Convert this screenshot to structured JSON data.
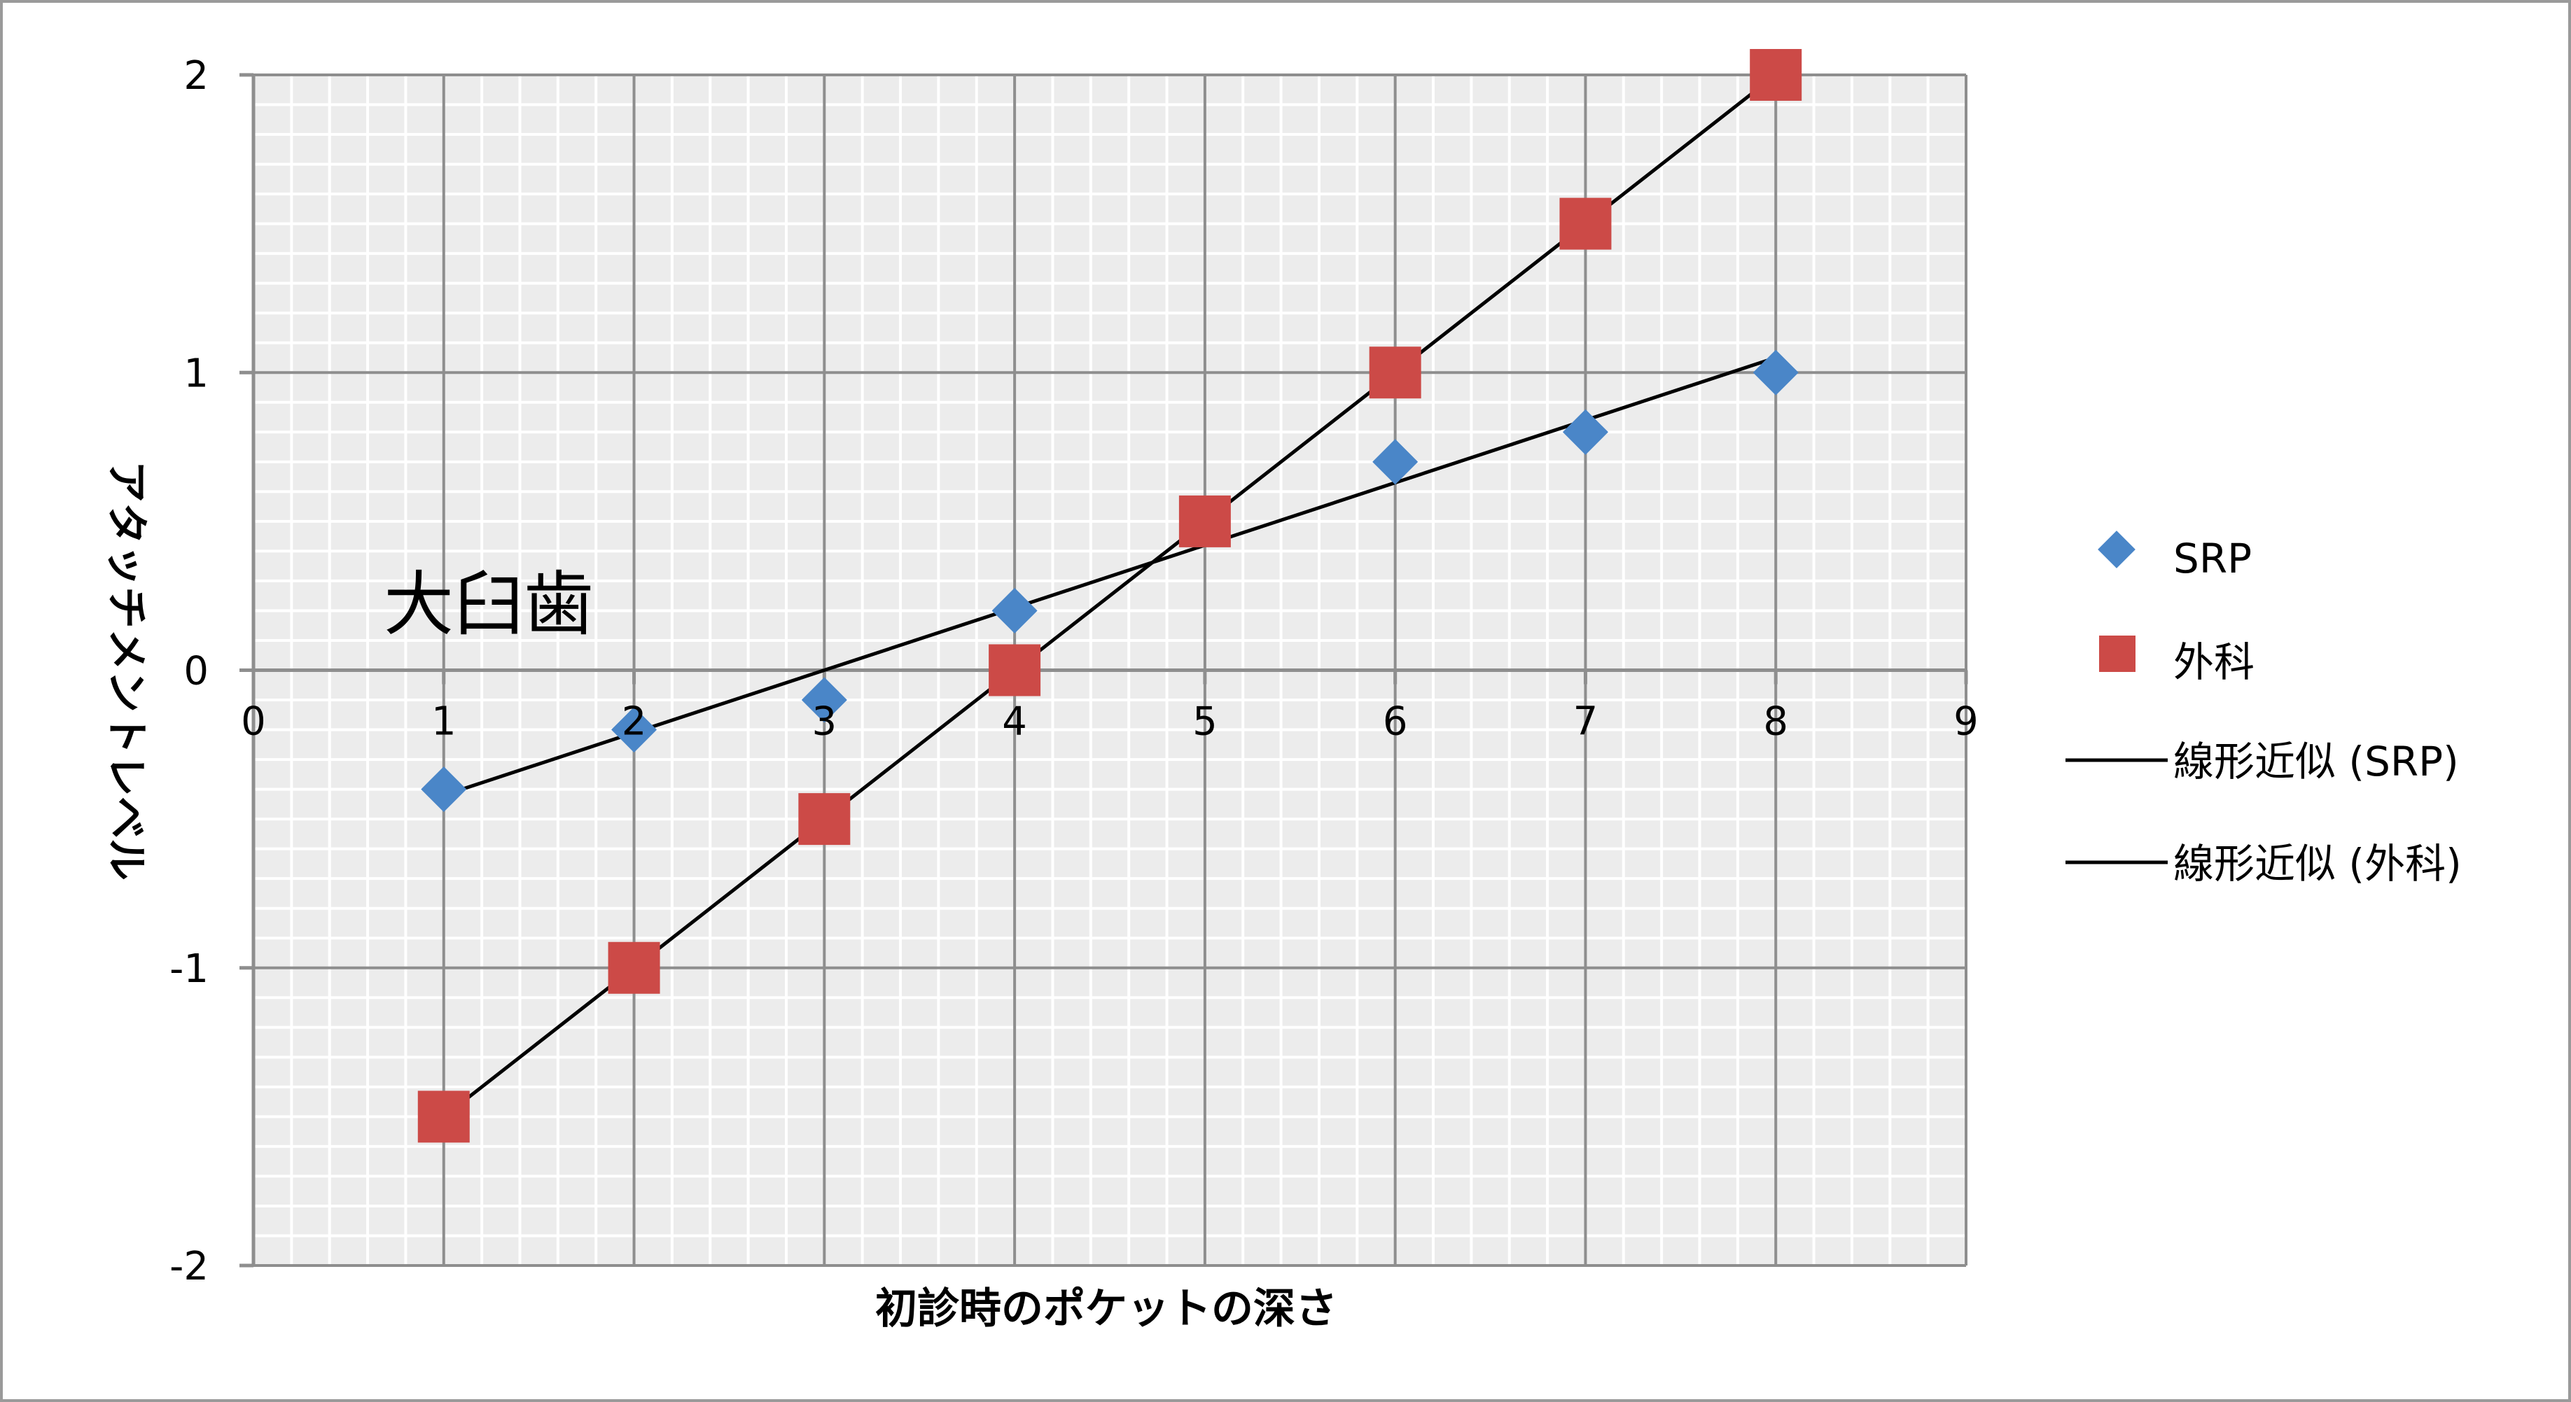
{
  "chart_data": {
    "type": "scatter",
    "title": "",
    "xlabel": "初診時のポケットの深さ",
    "ylabel": "アタッチメントレベル",
    "xlim": [
      0,
      9
    ],
    "ylim": [
      -2,
      2
    ],
    "x_ticks": [
      0,
      1,
      2,
      3,
      4,
      5,
      6,
      7,
      8,
      9
    ],
    "y_ticks": [
      -2,
      -1,
      0,
      1,
      2
    ],
    "grid": true,
    "legend_position": "right",
    "annotation": "大臼歯",
    "series": [
      {
        "name": "SRP",
        "marker": "diamond",
        "color": "#4a86c8",
        "x": [
          1,
          2,
          3,
          4,
          6,
          7,
          8
        ],
        "y": [
          -0.4,
          -0.2,
          -0.1,
          0.2,
          0.7,
          0.8,
          1.0
        ]
      },
      {
        "name": "外科",
        "marker": "square",
        "color": "#cc4a47",
        "x": [
          1,
          2,
          3,
          4,
          5,
          6,
          7,
          8
        ],
        "y": [
          -1.5,
          -1.0,
          -0.5,
          0.0,
          0.5,
          1.0,
          1.5,
          2.0
        ]
      }
    ],
    "trendlines": [
      {
        "name": "線形近似 (SRP)",
        "color": "#000000",
        "x": [
          1,
          8
        ],
        "y": [
          -0.42,
          1.05
        ]
      },
      {
        "name": "線形近似 (外科)",
        "color": "#000000",
        "x": [
          1,
          8
        ],
        "y": [
          -1.5,
          2.0
        ]
      }
    ]
  }
}
